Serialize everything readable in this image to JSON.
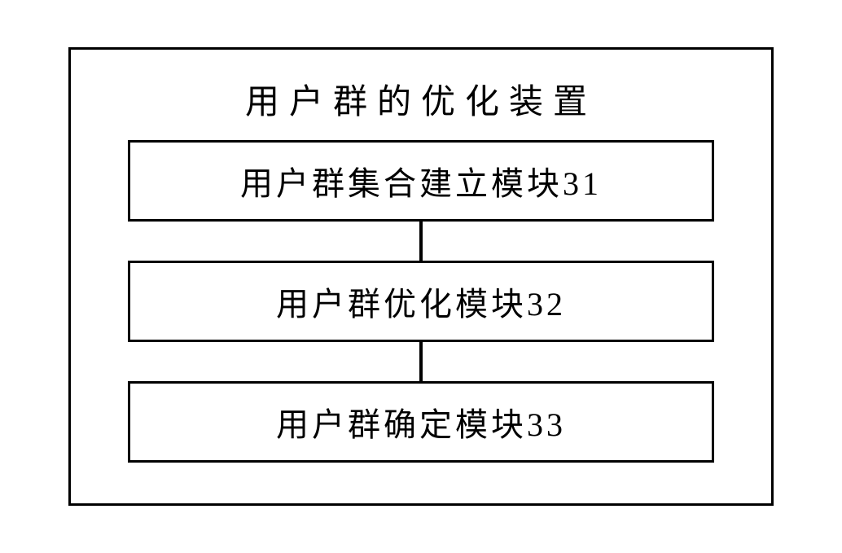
{
  "diagram": {
    "title": "用户群的优化装置",
    "title_fontsize": 42,
    "title_letter_spacing": 12,
    "modules": [
      {
        "label": "用户群集合建立模块31"
      },
      {
        "label": "用户群优化模块32"
      },
      {
        "label": "用户群确定模块33"
      }
    ],
    "module_fontsize": 40,
    "module_letter_spacing": 4,
    "border_color": "#000000",
    "border_width": 3,
    "background_color": "#ffffff",
    "connector_width": 4,
    "connector_height": 48,
    "font_family": "KaiTi"
  }
}
